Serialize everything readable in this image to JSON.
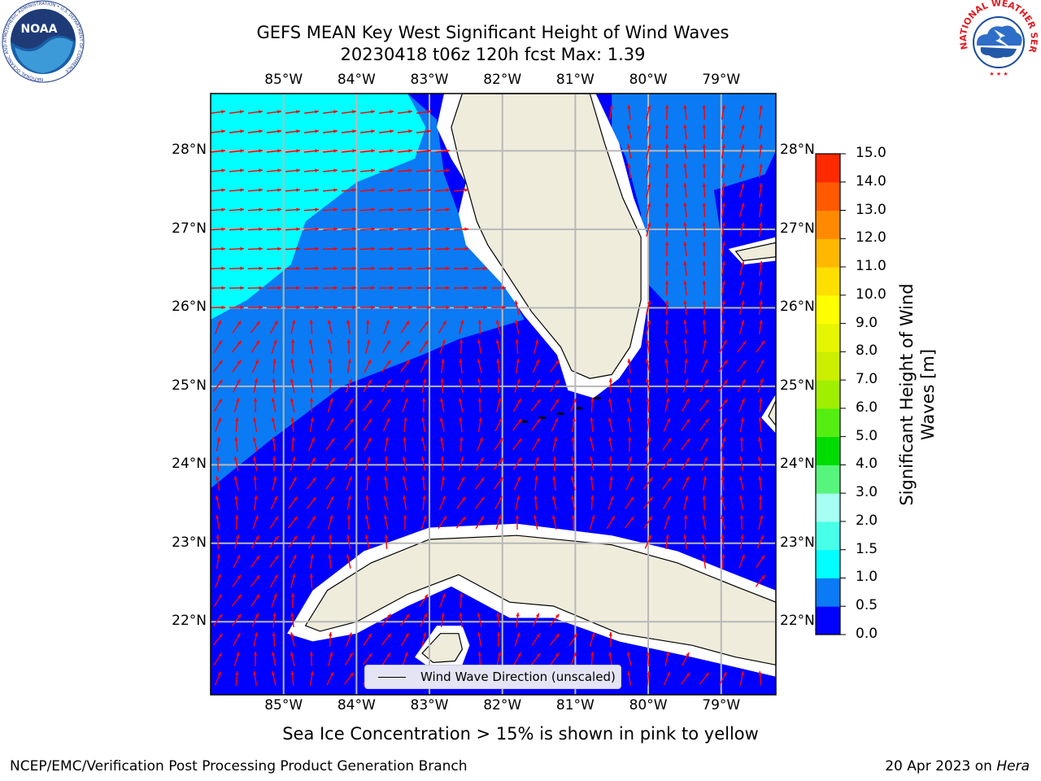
{
  "title": {
    "line1": "GEFS MEAN Key West Significant Height of Wind Waves",
    "line2": "20230418 t06z 120h fcst   Max: 1.39"
  },
  "axes": {
    "lon_labels": [
      "85°W",
      "84°W",
      "83°W",
      "82°W",
      "81°W",
      "80°W",
      "79°W"
    ],
    "lat_labels": [
      "28°N",
      "27°N",
      "26°N",
      "25°N",
      "24°N",
      "23°N",
      "22°N"
    ],
    "lon_range": [
      -86.0,
      -78.25
    ],
    "lat_range": [
      21.07,
      28.73
    ]
  },
  "colorbar": {
    "label": "Significant Height of Wind Waves [m]",
    "ticks": [
      "0.0",
      "0.5",
      "1.0",
      "1.5",
      "2.0",
      "3.0",
      "4.0",
      "5.0",
      "6.0",
      "7.0",
      "8.0",
      "9.0",
      "10.0",
      "11.0",
      "12.0",
      "13.0",
      "14.0",
      "15.0"
    ],
    "colors": [
      "#0000ff",
      "#0a7af5",
      "#00ffff",
      "#48ffe8",
      "#a6fff2",
      "#57f57c",
      "#00dc00",
      "#55ee11",
      "#a0ee00",
      "#ccee00",
      "#e6f500",
      "#ffff00",
      "#ffdf00",
      "#ffb800",
      "#ff8a00",
      "#ff5a00",
      "#ff2a00",
      "#ff0000"
    ]
  },
  "legend": {
    "label": "Wind Wave Direction (unscaled)"
  },
  "colors": {
    "land": "#efecdc",
    "arrow": "#ff0000",
    "grid": "#b8b8b8",
    "no_data": "#ffffff"
  },
  "subtitle": "Sea Ice Concentration > 15% is shown in pink to yellow",
  "footer": {
    "left": "NCEP/EMC/Verification Post Processing Product Generation Branch",
    "right_date": "20 Apr 2023 on ",
    "right_machine": "Hera"
  },
  "logos": {
    "noaa_text": "NOAA",
    "noaa_ring": "NATIONAL OCEANIC AND ATMOSPHERIC ADMINISTRATION • U.S. DEPARTMENT OF COMMERCE",
    "nws_ring": "NATIONAL WEATHER SERVICE"
  }
}
